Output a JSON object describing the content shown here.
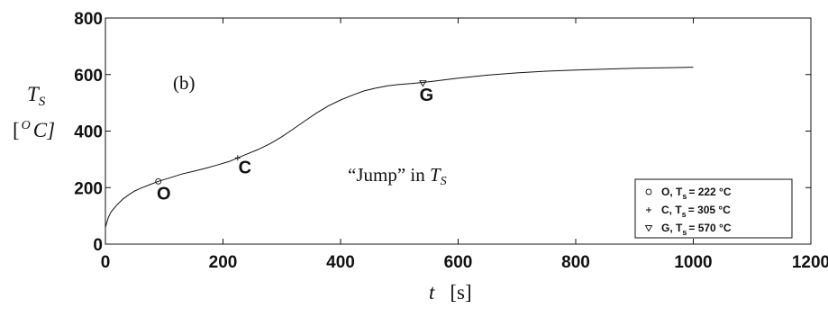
{
  "chart_data": {
    "type": "line",
    "panel_label": "(b)",
    "xlabel": {
      "var": "t",
      "unit": "[s]"
    },
    "ylabel": {
      "var": "T",
      "sub": "S",
      "unit_open": "[",
      "unit_sup": "O",
      "unit_rest": "C]"
    },
    "xlim": [
      0,
      1200
    ],
    "ylim": [
      0,
      800
    ],
    "xticks": [
      0,
      200,
      400,
      600,
      800,
      1000,
      1200
    ],
    "yticks": [
      0,
      200,
      400,
      600,
      800
    ],
    "grid": false,
    "legend_position": "lower-right",
    "series": [
      {
        "x": [
          0,
          5,
          10,
          20,
          30,
          40,
          50,
          60,
          75,
          90,
          110,
          130,
          150,
          170,
          190,
          210,
          225,
          240,
          260,
          280,
          300,
          320,
          340,
          360,
          380,
          400,
          420,
          440,
          460,
          480,
          500,
          520,
          540,
          560,
          580,
          600,
          650,
          700,
          750,
          800,
          850,
          900,
          950,
          1000
        ],
        "y": [
          60,
          95,
          115,
          140,
          160,
          175,
          188,
          198,
          210,
          222,
          235,
          248,
          258,
          268,
          280,
          292,
          305,
          318,
          335,
          355,
          380,
          408,
          437,
          465,
          490,
          510,
          527,
          542,
          552,
          560,
          565,
          568,
          572,
          577,
          582,
          587,
          598,
          606,
          612,
          616,
          619,
          622,
          624,
          626
        ]
      }
    ],
    "points": [
      {
        "label": "O",
        "x": 90,
        "y": 222,
        "marker": "circle"
      },
      {
        "label": "C",
        "x": 225,
        "y": 305,
        "marker": "plus"
      },
      {
        "label": "G",
        "x": 540,
        "y": 570,
        "marker": "triangle-down"
      }
    ],
    "annotation": {
      "text_pre": "“Jump” in ",
      "var": "T",
      "sub": "S"
    },
    "legend": [
      {
        "marker": "circle",
        "label": "O, T",
        "sub": "s",
        "value": "= 222 °C"
      },
      {
        "marker": "plus",
        "label": "C, T",
        "sub": "s",
        "value": "= 305 °C"
      },
      {
        "marker": "triangle-down",
        "label": "G, T",
        "sub": "s",
        "value": "= 570 °C"
      }
    ]
  }
}
